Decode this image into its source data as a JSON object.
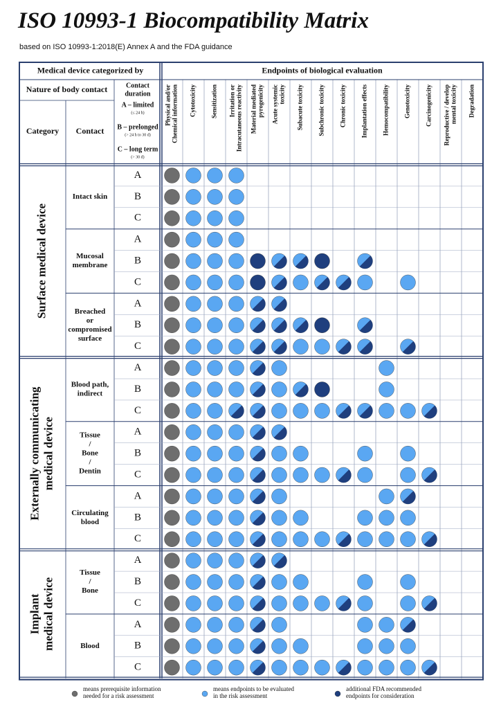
{
  "title": "ISO 10993-1 Biocompatibility Matrix",
  "subtitle": "based on ISO 10993-1:2018(E) Annex A and the FDA guidance",
  "header": {
    "left": "Medical device categorized by",
    "right": "Endpoints of biological evaluation",
    "nature": "Nature of body contact",
    "category": "Category",
    "contact": "Contact",
    "duration": {
      "title": [
        "Contact",
        "duration"
      ],
      "items": [
        {
          "label": "A – limited",
          "range": "(≤ 24 h)"
        },
        {
          "label": "B – prelonged",
          "range": "(> 24 h to 30 d)"
        },
        {
          "label": "C – long term",
          "range": "(> 30 d)"
        }
      ]
    }
  },
  "endpoints": [
    [
      "Physical and/or",
      "Chemical information"
    ],
    [
      "Cytotoxicity"
    ],
    [
      "Sensitization"
    ],
    [
      "Irritation or",
      "Intracutaneous reactivity"
    ],
    [
      "Material mediated",
      "pyrogenicity"
    ],
    [
      "Acute systemic",
      "toxicity"
    ],
    [
      "Subacute toxicity"
    ],
    [
      "Subchronic toxicity"
    ],
    [
      "Chronic toxicity"
    ],
    [
      "Implantation effects"
    ],
    [
      "Hemocompatibility"
    ],
    [
      "Genotoxicity"
    ],
    [
      "Carcinogenicity"
    ],
    [
      "Reproductive / develop",
      "mental toxicity"
    ],
    [
      "Degradation"
    ]
  ],
  "categories": [
    {
      "label": [
        "Surface  medical device"
      ],
      "contacts": [
        {
          "label": [
            "Intact skin"
          ],
          "rows": [
            {
              "duration": "A",
              "cells": [
                "P",
                "E",
                "E",
                "E"
              ]
            },
            {
              "duration": "B",
              "cells": [
                "P",
                "E",
                "E",
                "E"
              ]
            },
            {
              "duration": "C",
              "cells": [
                "P",
                "E",
                "E",
                "E"
              ]
            }
          ]
        },
        {
          "label": [
            "Mucosal",
            "membrane"
          ],
          "rows": [
            {
              "duration": "A",
              "cells": [
                "P",
                "E",
                "E",
                "E"
              ]
            },
            {
              "duration": "B",
              "cells": [
                "P",
                "E",
                "E",
                "E",
                "F",
                "EF",
                "EF",
                "F",
                null,
                "EF"
              ]
            },
            {
              "duration": "C",
              "cells": [
                "P",
                "E",
                "E",
                "E",
                "F",
                "EF",
                "E",
                "EF",
                "EF",
                "E",
                null,
                "E"
              ]
            }
          ]
        },
        {
          "label": [
            "Breached",
            "or",
            "compromised",
            "surface"
          ],
          "rows": [
            {
              "duration": "A",
              "cells": [
                "P",
                "E",
                "E",
                "E",
                "EF",
                "EF"
              ]
            },
            {
              "duration": "B",
              "cells": [
                "P",
                "E",
                "E",
                "E",
                "EF",
                "EF",
                "EF",
                "F",
                null,
                "EF"
              ]
            },
            {
              "duration": "C",
              "cells": [
                "P",
                "E",
                "E",
                "E",
                "EF",
                "EF",
                "E",
                "E",
                "EF",
                "EF",
                null,
                "EF"
              ]
            }
          ]
        }
      ]
    },
    {
      "label": [
        "Externally communicating",
        "medical device"
      ],
      "contacts": [
        {
          "label": [
            "Blood path,",
            "indirect"
          ],
          "rows": [
            {
              "duration": "A",
              "cells": [
                "P",
                "E",
                "E",
                "E",
                "EF",
                "E",
                null,
                null,
                null,
                null,
                "E"
              ]
            },
            {
              "duration": "B",
              "cells": [
                "P",
                "E",
                "E",
                "E",
                "EF",
                "E",
                "EF",
                "F",
                null,
                null,
                "E"
              ]
            },
            {
              "duration": "C",
              "cells": [
                "P",
                "E",
                "E",
                "EF",
                "EF",
                "E",
                "E",
                "E",
                "EF",
                "EF",
                "E",
                "E",
                "EF"
              ]
            }
          ]
        },
        {
          "label": [
            "Tissue",
            "/",
            "Bone",
            "/",
            "Dentin"
          ],
          "rows": [
            {
              "duration": "A",
              "cells": [
                "P",
                "E",
                "E",
                "E",
                "EF",
                "EF"
              ]
            },
            {
              "duration": "B",
              "cells": [
                "P",
                "E",
                "E",
                "E",
                "EF",
                "E",
                "E",
                null,
                null,
                "E",
                null,
                "E"
              ]
            },
            {
              "duration": "C",
              "cells": [
                "P",
                "E",
                "E",
                "E",
                "EF",
                "E",
                "E",
                "E",
                "EF",
                "E",
                null,
                "E",
                "EF"
              ]
            }
          ]
        },
        {
          "label": [
            "Circulating",
            "blood"
          ],
          "rows": [
            {
              "duration": "A",
              "cells": [
                "P",
                "E",
                "E",
                "E",
                "EF",
                "E",
                null,
                null,
                null,
                null,
                "E",
                "EF"
              ]
            },
            {
              "duration": "B",
              "cells": [
                "P",
                "E",
                "E",
                "E",
                "EF",
                "E",
                "E",
                null,
                null,
                "E",
                "E",
                "E"
              ]
            },
            {
              "duration": "C",
              "cells": [
                "P",
                "E",
                "E",
                "E",
                "EF",
                "E",
                "E",
                "E",
                "EF",
                "E",
                "E",
                "E",
                "EF"
              ]
            }
          ]
        }
      ]
    },
    {
      "label": [
        "Implant",
        "medical device"
      ],
      "contacts": [
        {
          "label": [
            "Tissue",
            "/",
            "Bone"
          ],
          "rows": [
            {
              "duration": "A",
              "cells": [
                "P",
                "E",
                "E",
                "E",
                "EF",
                "EF"
              ]
            },
            {
              "duration": "B",
              "cells": [
                "P",
                "E",
                "E",
                "E",
                "EF",
                "E",
                "E",
                null,
                null,
                "E",
                null,
                "E"
              ]
            },
            {
              "duration": "C",
              "cells": [
                "P",
                "E",
                "E",
                "E",
                "EF",
                "E",
                "E",
                "E",
                "EF",
                "E",
                null,
                "E",
                "EF"
              ]
            }
          ]
        },
        {
          "label": [
            "Blood"
          ],
          "rows": [
            {
              "duration": "A",
              "cells": [
                "P",
                "E",
                "E",
                "E",
                "EF",
                "E",
                null,
                null,
                null,
                "E",
                "E",
                "EF"
              ]
            },
            {
              "duration": "B",
              "cells": [
                "P",
                "E",
                "E",
                "E",
                "EF",
                "E",
                "E",
                null,
                null,
                "E",
                "E",
                "E"
              ]
            },
            {
              "duration": "C",
              "cells": [
                "P",
                "E",
                "E",
                "E",
                "EF",
                "E",
                "E",
                "E",
                "EF",
                "E",
                "E",
                "E",
                "EF"
              ]
            }
          ]
        }
      ]
    }
  ],
  "legend": [
    {
      "code": "P",
      "text": [
        "means prerequisite information",
        "needed for a risk assessment"
      ]
    },
    {
      "code": "E",
      "text": [
        "means endpoints to be evaluated",
        "in the risk assessment"
      ]
    },
    {
      "code": "F",
      "text": [
        "additional FDA recommended",
        "endpoints for consideration"
      ]
    }
  ]
}
